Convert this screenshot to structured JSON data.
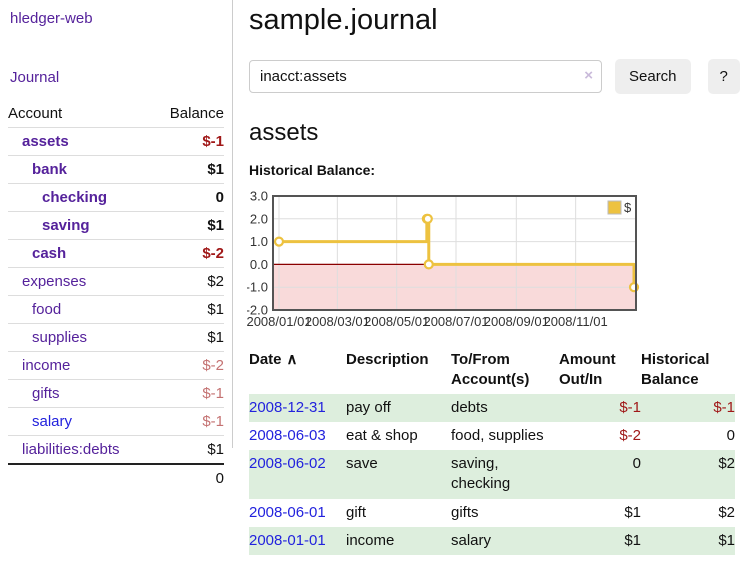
{
  "colors": {
    "purple": "#55229b",
    "blue": "#2222dd",
    "neg-strong": "#a01818",
    "neg-muted": "#c47272",
    "stripe": "#ddeedd",
    "chart-gold": "#edc240",
    "chart-pink": "#f9dada",
    "chart-zero": "#8b0000",
    "chart-border": "#545454",
    "chart-grid": "#dedede"
  },
  "sidebar": {
    "app_title": "hledger-web",
    "journal_link": "Journal",
    "accounts": {
      "header_account": "Account",
      "header_balance": "Balance",
      "rows": [
        {
          "name": "assets",
          "indent": 1,
          "balance": "$-1",
          "bold": true,
          "tone": "neg-strong"
        },
        {
          "name": "bank",
          "indent": 2,
          "balance": "$1",
          "bold": true
        },
        {
          "name": "checking",
          "indent": 3,
          "balance": "0",
          "bold": true
        },
        {
          "name": "saving",
          "indent": 3,
          "balance": "$1",
          "bold": true
        },
        {
          "name": "cash",
          "indent": 2,
          "balance": "$-2",
          "bold": true,
          "tone": "neg-strong"
        },
        {
          "name": "expenses",
          "indent": 1,
          "balance": "$2"
        },
        {
          "name": "food",
          "indent": 2,
          "balance": "$1"
        },
        {
          "name": "supplies",
          "indent": 2,
          "balance": "$1"
        },
        {
          "name": "income",
          "indent": 1,
          "balance": "$-2",
          "tone": "neg-muted"
        },
        {
          "name": "gifts",
          "indent": 2,
          "balance": "$-1",
          "tone": "neg-muted"
        },
        {
          "name": "salary",
          "indent": 2,
          "balance": "$-1",
          "tone": "neg-muted",
          "link": "blue"
        },
        {
          "name": "liabilities:debts",
          "indent": 1,
          "balance": "$1"
        }
      ],
      "total": "0"
    }
  },
  "header": {
    "title": "sample.journal"
  },
  "search": {
    "value": "inacct:assets",
    "clear_icon": "×",
    "search_button": "Search",
    "help_button": "?"
  },
  "account_page": {
    "heading": "assets",
    "chart_label": "Historical Balance:"
  },
  "chart_data": {
    "type": "line",
    "step": true,
    "title": "Historical Balance",
    "legend": "$",
    "legend_position": "top-right",
    "grid": true,
    "ylim": [
      -2,
      3
    ],
    "yticks": [
      "3.0",
      "2.0",
      "1.0",
      "0.0",
      "-1.0",
      "-2.0"
    ],
    "ytick_values": [
      3,
      2,
      1,
      0,
      -1,
      -2
    ],
    "xticks": [
      "2008/01/01",
      "2008/03/01",
      "2008/05/01",
      "2008/07/01",
      "2008/09/01",
      "2008/11/01"
    ],
    "series": [
      {
        "name": "$",
        "points": [
          {
            "x": "2008-01-01",
            "y": 1
          },
          {
            "x": "2008-06-01",
            "y": 2
          },
          {
            "x": "2008-06-02",
            "y": 2
          },
          {
            "x": "2008-06-03",
            "y": 0
          },
          {
            "x": "2008-12-31",
            "y": -1
          }
        ]
      }
    ],
    "negative_region": {
      "from": 0,
      "to": -2
    }
  },
  "register_table": {
    "headers": {
      "date": "Date",
      "sort_icon": "∧",
      "description": "Description",
      "accounts": "To/From Account(s)",
      "amount": "Amount Out/In",
      "balance": "Historical Balance"
    },
    "rows": [
      {
        "date": "2008-12-31",
        "description": "pay off",
        "accounts": "debts",
        "amount": "$-1",
        "amount_tone": "neg-strong",
        "balance": "$-1",
        "balance_tone": "neg-strong"
      },
      {
        "date": "2008-06-03",
        "description": "eat & shop",
        "accounts": "food, supplies",
        "amount": "$-2",
        "amount_tone": "neg-strong",
        "balance": "0"
      },
      {
        "date": "2008-06-02",
        "description": "save",
        "accounts": "saving, checking",
        "amount": "0",
        "balance": "$2"
      },
      {
        "date": "2008-06-01",
        "description": "gift",
        "accounts": "gifts",
        "amount": "$1",
        "balance": "$2"
      },
      {
        "date": "2008-01-01",
        "description": "income",
        "accounts": "salary",
        "amount": "$1",
        "balance": "$1"
      }
    ]
  }
}
